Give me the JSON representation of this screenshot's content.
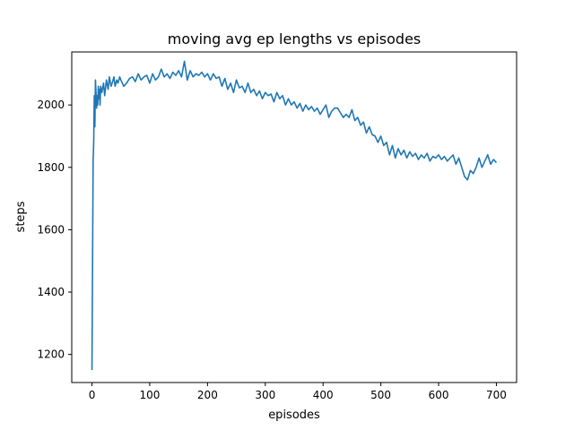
{
  "chart_data": {
    "type": "line",
    "title": "moving avg ep lengths vs episodes",
    "xlabel": "episodes",
    "ylabel": "steps",
    "xlim": [
      -35,
      735
    ],
    "ylim": [
      1110,
      2170
    ],
    "xticks": [
      0,
      100,
      200,
      300,
      400,
      500,
      600,
      700
    ],
    "yticks": [
      1200,
      1400,
      1600,
      1800,
      2000
    ],
    "grid": false,
    "line_color": "#1f77b4",
    "series": [
      {
        "x": [
          0,
          2,
          3,
          4,
          5,
          6,
          7,
          8,
          9,
          10,
          11,
          12,
          13,
          14,
          15,
          17,
          20,
          22,
          25,
          28,
          30,
          33,
          35,
          38,
          40,
          43,
          45,
          48,
          50,
          55,
          60,
          65,
          70,
          75,
          80,
          85,
          90,
          95,
          100,
          105,
          110,
          115,
          120,
          125,
          130,
          135,
          140,
          145,
          150,
          155,
          160,
          165,
          170,
          175,
          180,
          185,
          190,
          195,
          200,
          205,
          210,
          215,
          220,
          225,
          230,
          235,
          240,
          245,
          250,
          255,
          260,
          265,
          270,
          275,
          280,
          285,
          290,
          295,
          300,
          305,
          310,
          315,
          320,
          325,
          330,
          335,
          340,
          345,
          350,
          355,
          360,
          365,
          370,
          375,
          380,
          385,
          390,
          395,
          400,
          405,
          410,
          415,
          420,
          425,
          430,
          435,
          440,
          445,
          450,
          455,
          460,
          465,
          470,
          475,
          480,
          485,
          490,
          495,
          500,
          505,
          510,
          515,
          520,
          525,
          530,
          535,
          540,
          545,
          550,
          555,
          560,
          565,
          570,
          575,
          580,
          585,
          590,
          595,
          600,
          605,
          610,
          615,
          620,
          625,
          630,
          635,
          640,
          645,
          650,
          655,
          660,
          665,
          670,
          675,
          680,
          685,
          690,
          695,
          700
        ],
        "y": [
          1150,
          1820,
          1880,
          2030,
          1930,
          2080,
          2040,
          1990,
          2030,
          2000,
          2060,
          2020,
          2050,
          2000,
          2060,
          2040,
          2070,
          2030,
          2080,
          2050,
          2090,
          2060,
          2070,
          2090,
          2060,
          2080,
          2070,
          2090,
          2080,
          2060,
          2070,
          2085,
          2090,
          2075,
          2100,
          2080,
          2090,
          2095,
          2070,
          2100,
          2080,
          2090,
          2115,
          2090,
          2100,
          2085,
          2105,
          2095,
          2110,
          2090,
          2140,
          2080,
          2110,
          2090,
          2100,
          2095,
          2105,
          2090,
          2100,
          2080,
          2100,
          2085,
          2090,
          2060,
          2085,
          2050,
          2070,
          2040,
          2080,
          2055,
          2060,
          2040,
          2070,
          2040,
          2050,
          2030,
          2045,
          2020,
          2040,
          2030,
          2035,
          2010,
          2040,
          2020,
          2030,
          2000,
          2020,
          2000,
          2010,
          1990,
          2005,
          1980,
          2000,
          1985,
          1995,
          1980,
          1990,
          1970,
          1985,
          2000,
          1960,
          1980,
          1990,
          1990,
          1975,
          1960,
          1970,
          1960,
          1985,
          1950,
          1960,
          1935,
          1945,
          1910,
          1930,
          1905,
          1900,
          1880,
          1900,
          1870,
          1880,
          1840,
          1870,
          1830,
          1860,
          1840,
          1855,
          1830,
          1850,
          1835,
          1845,
          1825,
          1840,
          1830,
          1845,
          1820,
          1835,
          1830,
          1840,
          1825,
          1835,
          1820,
          1830,
          1840,
          1810,
          1830,
          1800,
          1770,
          1760,
          1790,
          1780,
          1800,
          1830,
          1800,
          1820,
          1840,
          1810,
          1825,
          1815
        ]
      }
    ]
  }
}
